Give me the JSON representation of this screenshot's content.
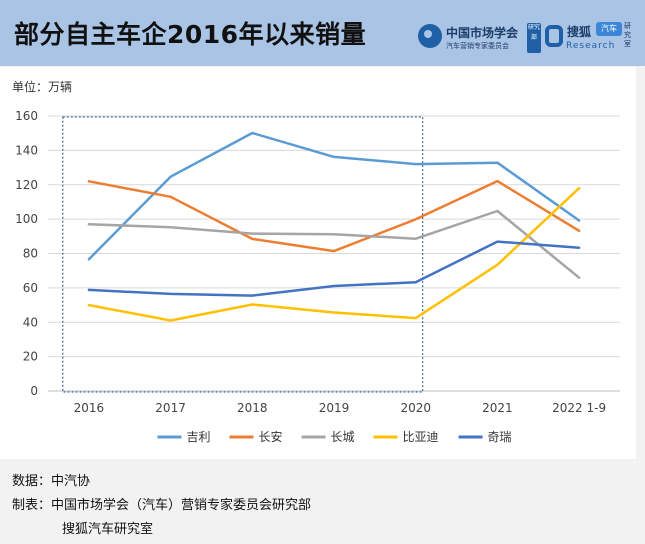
{
  "header": {
    "title": "部分自主车企2016年以来销量",
    "cma_name": "中国市场学会",
    "cma_sub": "汽车营销专家委员会",
    "cma_badge": "研究部",
    "sohu_name": "搜狐",
    "sohu_badge": "汽车",
    "sohu_research": "Research",
    "sohu_side": "研究室"
  },
  "unit_label": "单位：万辆",
  "chart_data": {
    "type": "line",
    "categories": [
      "2016",
      "2017",
      "2018",
      "2019",
      "2020",
      "2021",
      "2022 1-9"
    ],
    "ylim": [
      0,
      160
    ],
    "yticks": [
      0,
      20,
      40,
      60,
      80,
      100,
      120,
      140,
      160
    ],
    "grid": true,
    "legend_position": "bottom",
    "highlight_box_categories": [
      "2016",
      "2020"
    ],
    "series": [
      {
        "name": "吉利",
        "color": "#5b9bd5",
        "values": [
          76.6,
          124.7,
          150.1,
          136.2,
          132.0,
          132.8,
          99.2
        ]
      },
      {
        "name": "长安",
        "color": "#ed7d31",
        "values": [
          122.0,
          113.0,
          88.5,
          81.4,
          99.9,
          122.1,
          93.2
        ]
      },
      {
        "name": "长城",
        "color": "#a5a5a5",
        "values": [
          97.0,
          95.3,
          91.6,
          91.2,
          88.6,
          104.7,
          65.9
        ]
      },
      {
        "name": "比亚迪",
        "color": "#ffc000",
        "values": [
          50.0,
          41.0,
          50.3,
          45.7,
          42.4,
          73.4,
          118.0
        ]
      },
      {
        "name": "奇瑞",
        "color": "#4472c4",
        "values": [
          58.8,
          56.5,
          55.5,
          61.1,
          63.3,
          86.9,
          83.4
        ]
      }
    ]
  },
  "footer": {
    "source": "数据：中汽协",
    "maker": "制表：中国市场学会（汽车）营销专家委员会研究部",
    "maker2": "搜狐汽车研究室"
  }
}
